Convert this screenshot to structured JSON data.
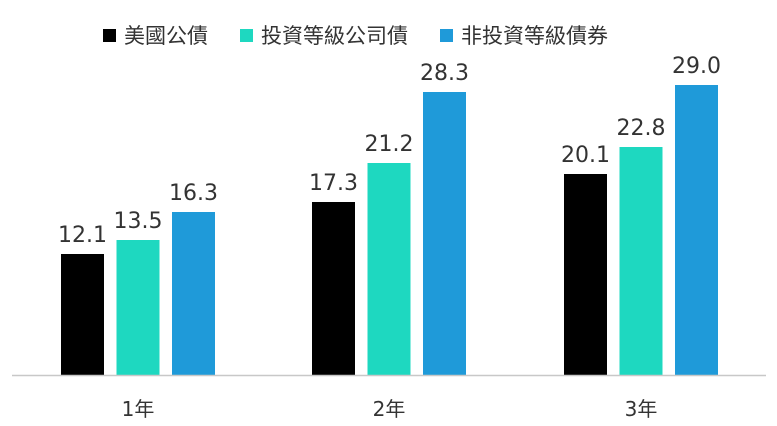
{
  "chart_data": {
    "type": "bar",
    "categories": [
      "1年",
      "2年",
      "3年"
    ],
    "series": [
      {
        "name": "美國公債",
        "values": [
          12.1,
          17.3,
          20.1
        ],
        "color": "#000000"
      },
      {
        "name": "投資等級公司債",
        "values": [
          13.5,
          21.2,
          22.8
        ],
        "color": "#1ed8c0"
      },
      {
        "name": "非投資等級債券",
        "values": [
          16.3,
          28.3,
          29.0
        ],
        "color": "#1f9ad9"
      }
    ],
    "data_labels": [
      [
        "12.1",
        "17.3",
        "20.1"
      ],
      [
        "13.5",
        "21.2",
        "22.8"
      ],
      [
        "16.3",
        "28.3",
        "29.0"
      ]
    ],
    "ylim": [
      0,
      35
    ],
    "grid": false,
    "legend_position": "top"
  }
}
